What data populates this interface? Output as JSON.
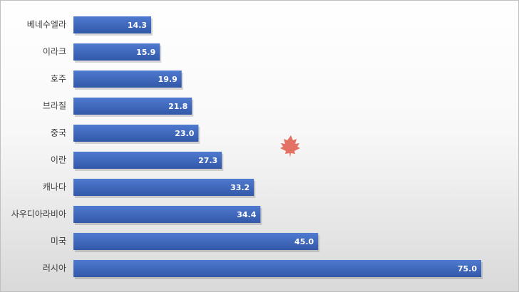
{
  "chart_data": {
    "type": "bar",
    "orientation": "horizontal",
    "categories": [
      "베네수엘라",
      "이라크",
      "호주",
      "브라질",
      "중국",
      "이란",
      "캐나다",
      "사우디아라비아",
      "미국",
      "러시아"
    ],
    "values": [
      14.3,
      15.9,
      19.9,
      21.8,
      23.0,
      27.3,
      33.2,
      34.4,
      45.0,
      75.0
    ],
    "value_labels": [
      "14.3",
      "15.9",
      "19.9",
      "21.8",
      "23.0",
      "27.3",
      "33.2",
      "34.4",
      "45.0",
      "75.0"
    ],
    "color": "#4169c0"
  }
}
